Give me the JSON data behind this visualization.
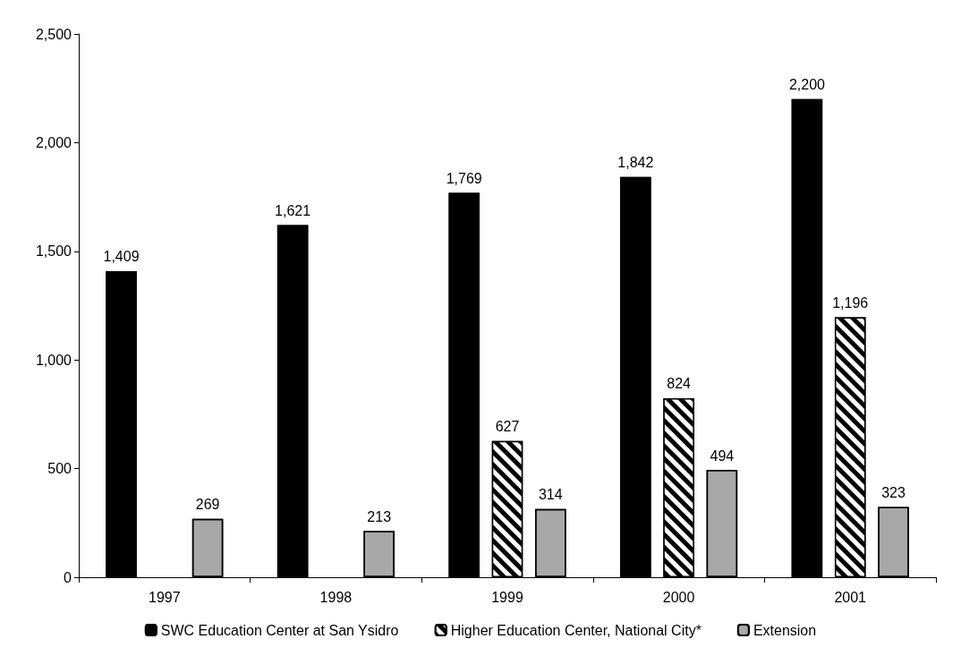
{
  "chart_data": {
    "type": "bar",
    "categories": [
      "1997",
      "1998",
      "1999",
      "2000",
      "2001"
    ],
    "series": [
      {
        "name": "SWC Education Center at San Ysidro",
        "color": "#000000",
        "values": [
          1409,
          1621,
          1769,
          1842,
          2200
        ],
        "value_labels": [
          "1,409",
          "1,621",
          "1,769",
          "1,842",
          "2,200"
        ]
      },
      {
        "name": "Higher Education Center, National City*",
        "color": "#000000",
        "values": [
          null,
          null,
          627,
          824,
          1196
        ],
        "value_labels": [
          null,
          null,
          "627",
          "824",
          "1,196"
        ]
      },
      {
        "name": "Extension",
        "color": "#a8a8a8",
        "values": [
          269,
          213,
          314,
          494,
          323
        ],
        "value_labels": [
          "269",
          "213",
          "314",
          "494",
          "323"
        ]
      }
    ],
    "ylim": [
      0,
      2500
    ],
    "yticks": [
      {
        "value": 0,
        "label": "0"
      },
      {
        "value": 500,
        "label": "500"
      },
      {
        "value": 1000,
        "label": "1,000"
      },
      {
        "value": 1500,
        "label": "1,500"
      },
      {
        "value": 2000,
        "label": "2,000"
      },
      {
        "value": 2500,
        "label": "2,500"
      }
    ],
    "grid": false,
    "legend": "bottom"
  }
}
